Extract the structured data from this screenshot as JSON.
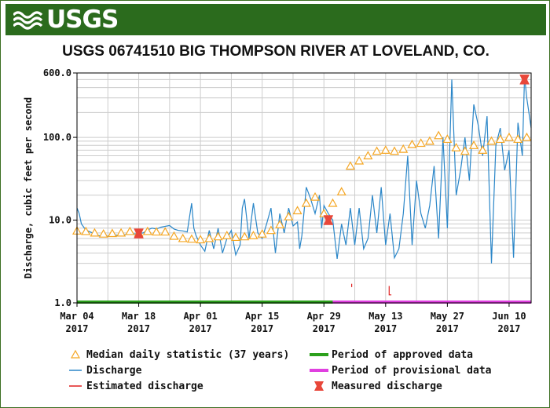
{
  "header": {
    "logo_text": "USGS",
    "title": "USGS 06741510 BIG THOMPSON RIVER AT LOVELAND, CO."
  },
  "colors": {
    "banner": "#2b6b1d",
    "discharge": "#2a86c8",
    "estimated": "#e02020",
    "median": "#f5a623",
    "approved": "#2ca01c",
    "provisional": "#e040e0",
    "measured": "#e8473a",
    "grid": "#cccccc"
  },
  "chart_data": {
    "type": "line",
    "title": "USGS 06741510 BIG THOMPSON RIVER AT LOVELAND, CO.",
    "ylabel": "Discharge, cubic feet per second",
    "xlabel": "",
    "y_scale": "log",
    "ylim": [
      1.0,
      600.0
    ],
    "y_ticks": [
      {
        "value": 1.0,
        "label": "1.0"
      },
      {
        "value": 10.0,
        "label": "10.0"
      },
      {
        "value": 100.0,
        "label": "100.0"
      },
      {
        "value": 600.0,
        "label": "600.0"
      }
    ],
    "x_range_days": [
      0,
      103
    ],
    "x_ticks": [
      {
        "day": 0,
        "line1": "Mar 04",
        "line2": "2017"
      },
      {
        "day": 14,
        "line1": "Mar 18",
        "line2": "2017"
      },
      {
        "day": 28,
        "line1": "Apr 01",
        "line2": "2017"
      },
      {
        "day": 42,
        "line1": "Apr 15",
        "line2": "2017"
      },
      {
        "day": 56,
        "line1": "Apr 29",
        "line2": "2017"
      },
      {
        "day": 70,
        "line1": "May 13",
        "line2": "2017"
      },
      {
        "day": 84,
        "line1": "May 27",
        "line2": "2017"
      },
      {
        "day": 98,
        "line1": "Jun 10",
        "line2": "2017"
      }
    ],
    "series": [
      {
        "name": "Discharge",
        "style": "line",
        "points": [
          [
            0,
            14
          ],
          [
            0.5,
            12
          ],
          [
            1,
            9
          ],
          [
            2,
            7.6
          ],
          [
            3,
            7.2
          ],
          [
            4,
            6.8
          ],
          [
            5,
            6.5
          ],
          [
            6,
            6.3
          ],
          [
            7,
            6.4
          ],
          [
            8,
            6.5
          ],
          [
            9,
            6.6
          ],
          [
            10,
            6.5
          ],
          [
            11,
            6.7
          ],
          [
            12,
            6.9
          ],
          [
            13,
            6.8
          ],
          [
            14,
            6.9
          ],
          [
            15,
            7.0
          ],
          [
            16,
            7.6
          ],
          [
            17,
            8.0
          ],
          [
            18,
            7.8
          ],
          [
            19,
            8.2
          ],
          [
            20,
            8.4
          ],
          [
            21,
            8.6
          ],
          [
            22,
            7.8
          ],
          [
            23,
            7.5
          ],
          [
            24,
            7.4
          ],
          [
            25,
            7.2
          ],
          [
            26,
            16
          ],
          [
            26.5,
            8
          ],
          [
            27,
            6.5
          ],
          [
            28,
            5.0
          ],
          [
            29,
            4.2
          ],
          [
            30,
            7.5
          ],
          [
            31,
            4.5
          ],
          [
            32,
            8
          ],
          [
            33,
            4.0
          ],
          [
            34,
            6.0
          ],
          [
            35,
            7.5
          ],
          [
            36,
            3.8
          ],
          [
            37,
            5.0
          ],
          [
            37.5,
            14
          ],
          [
            38,
            18
          ],
          [
            39,
            6.0
          ],
          [
            40,
            16
          ],
          [
            41,
            7.0
          ],
          [
            42,
            6.0
          ],
          [
            43,
            9.0
          ],
          [
            44,
            14
          ],
          [
            45,
            4.0
          ],
          [
            46,
            12
          ],
          [
            47,
            7.0
          ],
          [
            48,
            14
          ],
          [
            49,
            8.5
          ],
          [
            50,
            9.5
          ],
          [
            50.5,
            4.5
          ],
          [
            51,
            6.5
          ],
          [
            52,
            25
          ],
          [
            53,
            18
          ],
          [
            54,
            12
          ],
          [
            55,
            20
          ],
          [
            55.5,
            8
          ],
          [
            56,
            15
          ],
          [
            57,
            12
          ],
          [
            58,
            10
          ],
          [
            59,
            3.4
          ],
          [
            60,
            9
          ],
          [
            61,
            5.0
          ],
          [
            62,
            14
          ],
          [
            63,
            5.0
          ],
          [
            64,
            14
          ],
          [
            65,
            4.5
          ],
          [
            66,
            6.0
          ],
          [
            67,
            20
          ],
          [
            68,
            7.0
          ],
          [
            69,
            25
          ],
          [
            70,
            5.0
          ],
          [
            71,
            12
          ],
          [
            72,
            3.5
          ],
          [
            73,
            4.5
          ],
          [
            74,
            12
          ],
          [
            75,
            60
          ],
          [
            76,
            5.0
          ],
          [
            77,
            30
          ],
          [
            78,
            12
          ],
          [
            79,
            8.0
          ],
          [
            80,
            15
          ],
          [
            81,
            45
          ],
          [
            82,
            6.0
          ],
          [
            83,
            100
          ],
          [
            84,
            8.0
          ],
          [
            85,
            500
          ],
          [
            86,
            20
          ],
          [
            87,
            40
          ],
          [
            88,
            100
          ],
          [
            89,
            30
          ],
          [
            90,
            250
          ],
          [
            91,
            140
          ],
          [
            92,
            60
          ],
          [
            93,
            180
          ],
          [
            94,
            3.0
          ],
          [
            95,
            80
          ],
          [
            96,
            130
          ],
          [
            97,
            40
          ],
          [
            98,
            70
          ],
          [
            99,
            3.5
          ],
          [
            100,
            150
          ],
          [
            101,
            60
          ],
          [
            101.5,
            550
          ],
          [
            102,
            300
          ],
          [
            103,
            130
          ]
        ]
      },
      {
        "name": "Median daily statistic (37 years)",
        "style": "triangle",
        "points": [
          [
            0,
            7.4
          ],
          [
            2,
            7.3
          ],
          [
            4,
            7.0
          ],
          [
            6,
            6.8
          ],
          [
            8,
            6.9
          ],
          [
            10,
            7.0
          ],
          [
            12,
            7.3
          ],
          [
            14,
            7.0
          ],
          [
            16,
            7.3
          ],
          [
            18,
            7.2
          ],
          [
            20,
            7.2
          ],
          [
            22,
            6.4
          ],
          [
            24,
            6.0
          ],
          [
            26,
            5.9
          ],
          [
            28,
            5.8
          ],
          [
            30,
            6.0
          ],
          [
            32,
            6.3
          ],
          [
            34,
            6.5
          ],
          [
            36,
            6.2
          ],
          [
            38,
            6.3
          ],
          [
            40,
            6.5
          ],
          [
            42,
            6.8
          ],
          [
            44,
            7.5
          ],
          [
            46,
            8.8
          ],
          [
            48,
            11
          ],
          [
            50,
            13
          ],
          [
            52,
            16
          ],
          [
            54,
            19
          ],
          [
            56,
            12
          ],
          [
            58,
            16
          ],
          [
            60,
            22
          ],
          [
            62,
            45
          ],
          [
            64,
            52
          ],
          [
            66,
            60
          ],
          [
            68,
            68
          ],
          [
            70,
            70
          ],
          [
            72,
            68
          ],
          [
            74,
            72
          ],
          [
            76,
            82
          ],
          [
            78,
            85
          ],
          [
            80,
            90
          ],
          [
            82,
            105
          ],
          [
            84,
            95
          ],
          [
            86,
            75
          ],
          [
            88,
            68
          ],
          [
            90,
            80
          ],
          [
            92,
            70
          ],
          [
            94,
            90
          ],
          [
            96,
            95
          ],
          [
            98,
            100
          ],
          [
            100,
            95
          ],
          [
            102,
            100
          ]
        ]
      },
      {
        "name": "Estimated discharge",
        "style": "line",
        "segments": [
          [
            [
              62.3,
              1.7
            ],
            [
              62.3,
              1.55
            ]
          ],
          [
            [
              70.8,
              1.6
            ],
            [
              70.8,
              1.25
            ],
            [
              71.3,
              1.25
            ]
          ]
        ]
      },
      {
        "name": "Measured discharge",
        "style": "marker",
        "points": [
          [
            14,
            6.9
          ],
          [
            57,
            10
          ],
          [
            101.5,
            500
          ]
        ]
      }
    ],
    "periods": [
      {
        "name": "Period of approved data",
        "from_day": 0,
        "to_day": 58
      },
      {
        "name": "Period of provisional data",
        "from_day": 58,
        "to_day": 103
      }
    ],
    "legend": [
      {
        "key": "median",
        "label": "Median daily statistic (37 years)"
      },
      {
        "key": "approved",
        "label": "Period of approved data"
      },
      {
        "key": "discharge",
        "label": "Discharge"
      },
      {
        "key": "provisional",
        "label": "Period of provisional data"
      },
      {
        "key": "estimated",
        "label": "Estimated discharge"
      },
      {
        "key": "measured",
        "label": "Measured discharge"
      }
    ]
  }
}
